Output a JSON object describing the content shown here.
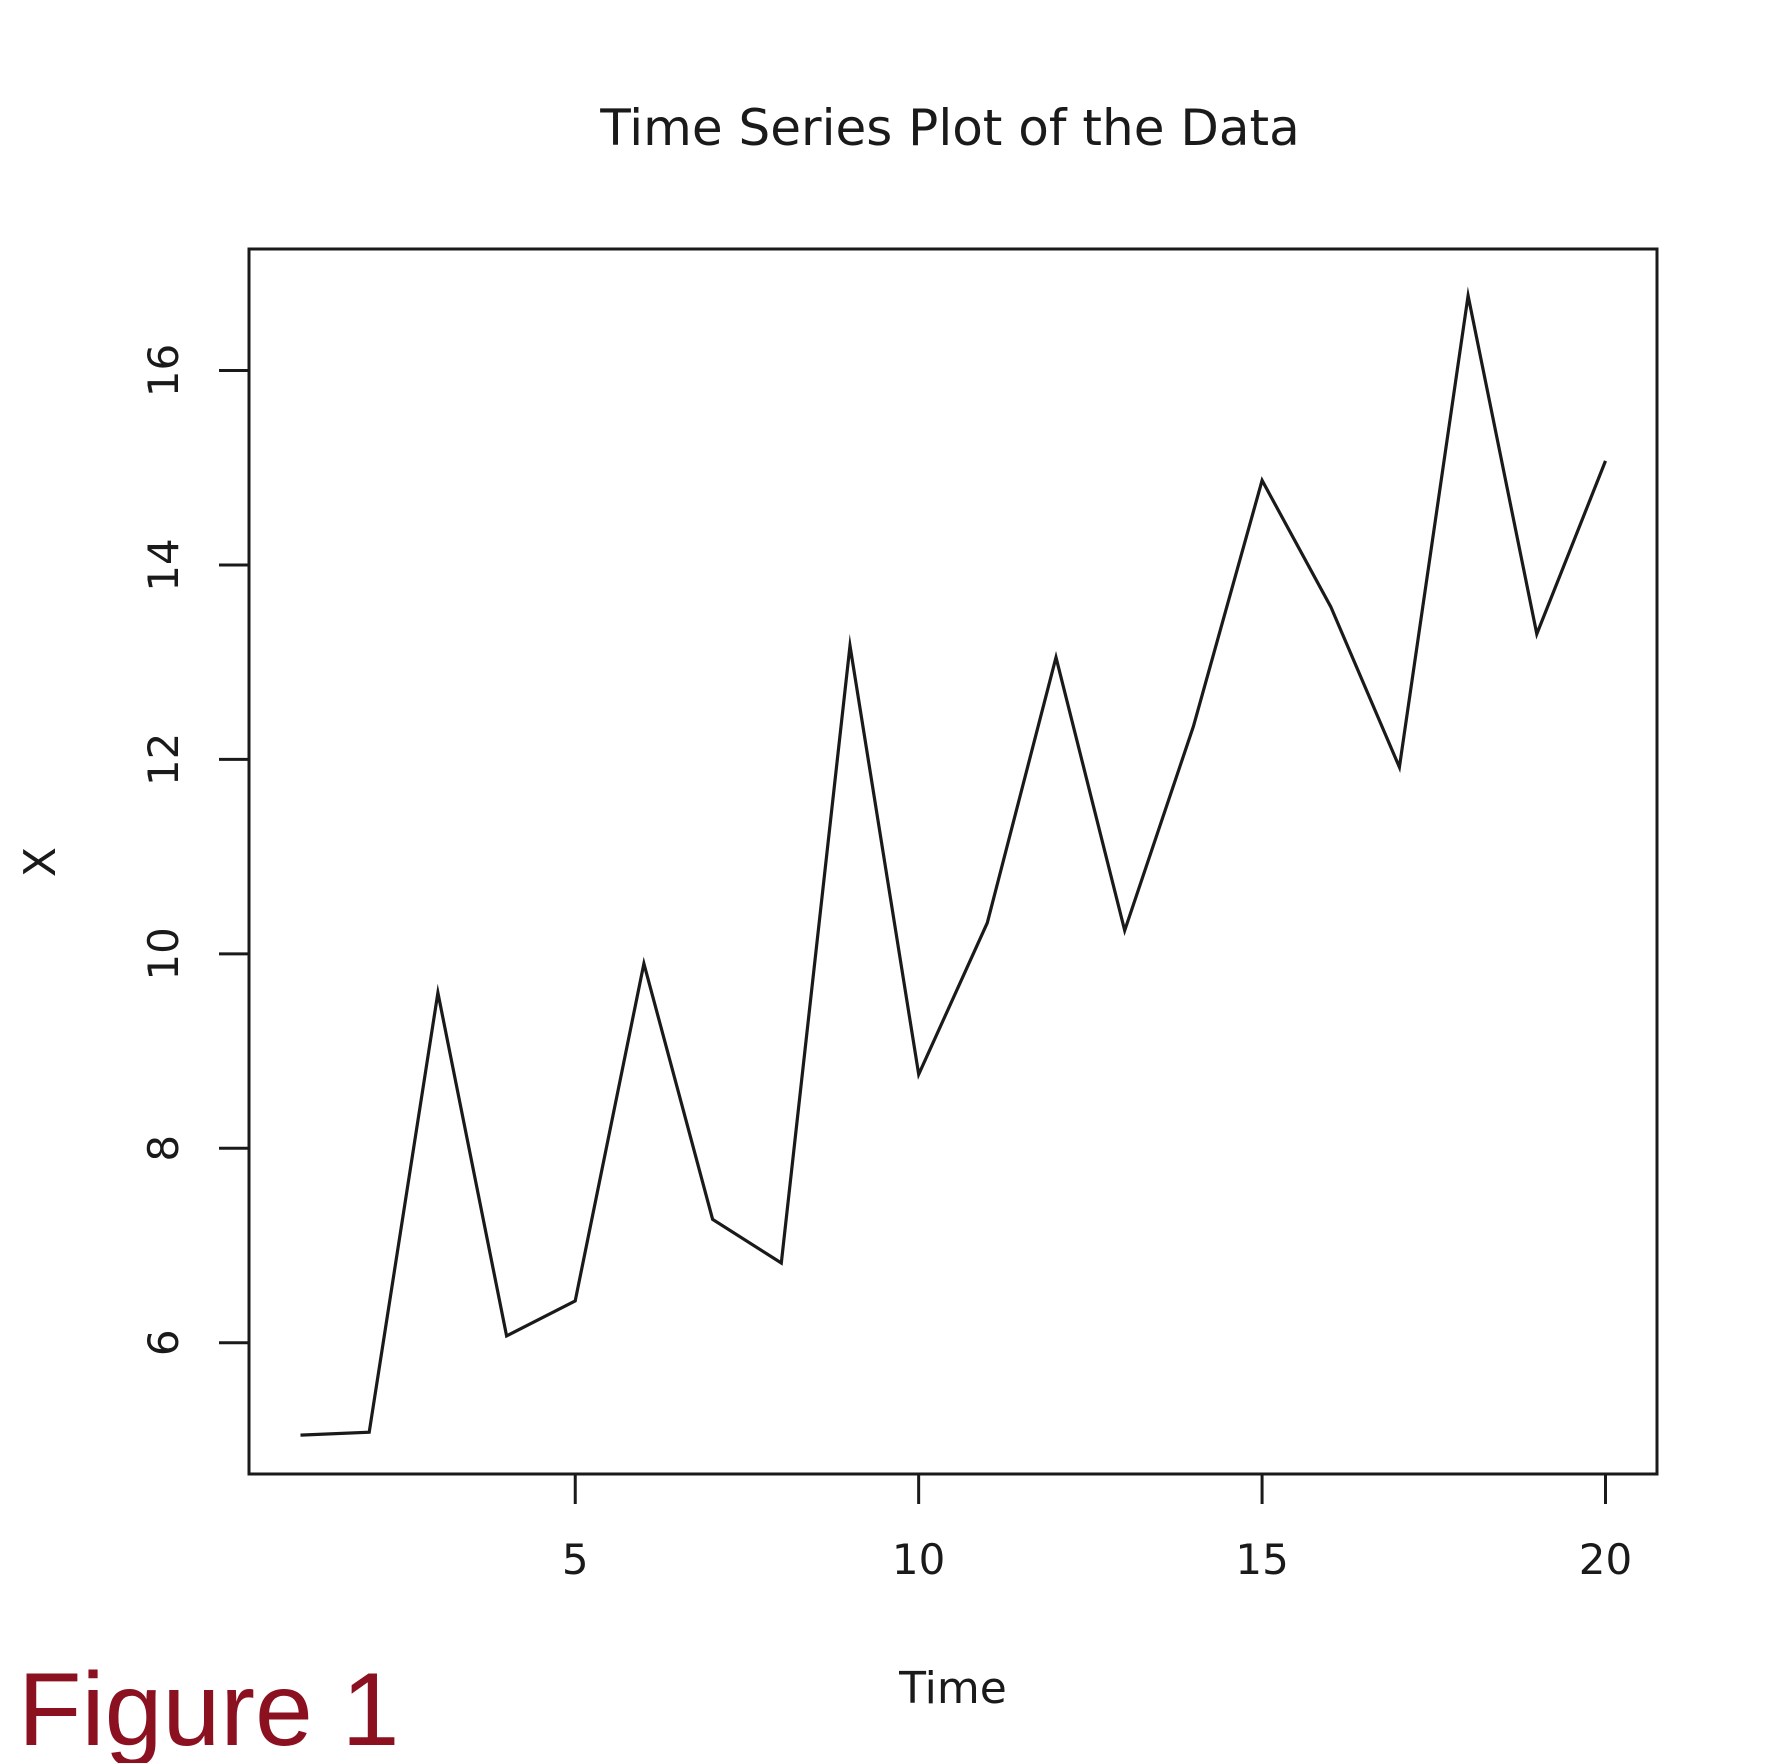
{
  "chart_data": {
    "type": "line",
    "title": "Time Series Plot of the Data",
    "xlabel": "Time",
    "ylabel": "X",
    "x": [
      1,
      2,
      3,
      4,
      5,
      6,
      7,
      8,
      9,
      10,
      11,
      12,
      13,
      14,
      15,
      16,
      17,
      18,
      19,
      20
    ],
    "series": [
      {
        "values": [
          5.05,
          5.08,
          9.6,
          6.07,
          6.43,
          9.9,
          7.27,
          6.82,
          13.17,
          8.76,
          10.32,
          13.05,
          10.24,
          12.34,
          14.87,
          13.57,
          11.92,
          16.77,
          13.29,
          15.07
        ]
      }
    ],
    "xlim": [
      0.25,
      20.75
    ],
    "ylim": [
      4.65,
      17.25
    ],
    "xticks": [
      5,
      10,
      15,
      20
    ],
    "xtick_labels": [
      "5",
      "10",
      "15",
      "20"
    ],
    "yticks": [
      6,
      8,
      10,
      12,
      14,
      16
    ],
    "ytick_labels": [
      "6",
      "8",
      "10",
      "12",
      "14",
      "16"
    ],
    "grid": false,
    "line_color": "#1a1a1a"
  },
  "figure_label": "Figure 1",
  "figure_label_color": "#8b1020"
}
